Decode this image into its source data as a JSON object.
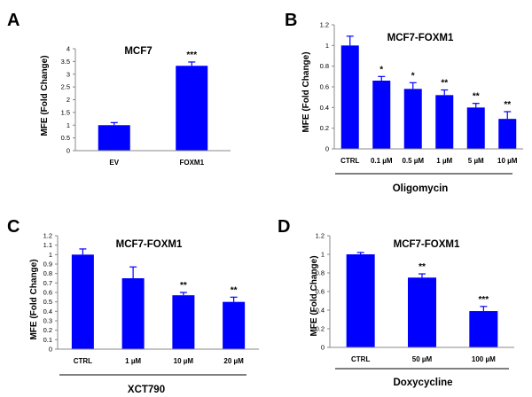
{
  "colors": {
    "bar": "#0000FF",
    "axis": "#888888",
    "text": "#000000"
  },
  "chart_data": [
    {
      "panel": "A",
      "type": "bar",
      "title": "MCF7",
      "ylabel": "MFE (Fold Change)",
      "xlabel": "",
      "categories": [
        "EV",
        "FOXM1"
      ],
      "values": [
        1.0,
        3.33
      ],
      "errors": [
        0.1,
        0.15
      ],
      "significance": [
        "",
        "***"
      ],
      "ylim": [
        0,
        4
      ],
      "yticks": [
        "0",
        "0.5",
        "1",
        "1.5",
        "2",
        "2.5",
        "3",
        "3.5",
        "4"
      ],
      "group_label": "",
      "grid": false,
      "legend": "none"
    },
    {
      "panel": "B",
      "type": "bar",
      "title": "MCF7-FOXM1",
      "ylabel": "MFE (Fold Change)",
      "xlabel": "",
      "categories": [
        "CTRL",
        "0.1 µM",
        "0.5 µM",
        "1 µM",
        "5 µM",
        "10 µM"
      ],
      "values": [
        1.0,
        0.66,
        0.58,
        0.52,
        0.4,
        0.29
      ],
      "errors": [
        0.09,
        0.04,
        0.06,
        0.05,
        0.04,
        0.07
      ],
      "significance": [
        "",
        "*",
        "*",
        "**",
        "**",
        "**"
      ],
      "ylim": [
        0,
        1.2
      ],
      "yticks": [
        "0",
        "0.2",
        "0.4",
        "0.6",
        "0.8",
        "1",
        "1.2"
      ],
      "group_label": "Oligomycin",
      "grid": false,
      "legend": "none"
    },
    {
      "panel": "C",
      "type": "bar",
      "title": "MCF7-FOXM1",
      "ylabel": "MFE (Fold Change)",
      "xlabel": "",
      "categories": [
        "CTRL",
        "1 µM",
        "10 µM",
        "20 µM"
      ],
      "values": [
        1.0,
        0.75,
        0.57,
        0.5
      ],
      "errors": [
        0.06,
        0.12,
        0.03,
        0.05
      ],
      "significance": [
        "",
        "",
        "**",
        "**"
      ],
      "ylim": [
        0,
        1.2
      ],
      "yticks": [
        "0",
        "0.1",
        "0.2",
        "0.3",
        "0.4",
        "0.5",
        "0.6",
        "0.7",
        "0.8",
        "0.9",
        "1",
        "1.1",
        "1.2"
      ],
      "group_label": "XCT790",
      "grid": false,
      "legend": "none"
    },
    {
      "panel": "D",
      "type": "bar",
      "title": "MCF7-FOXM1",
      "ylabel": "MFE (Fold Change)",
      "xlabel": "",
      "categories": [
        "CTRL",
        "50 µM",
        "100 µM"
      ],
      "values": [
        1.0,
        0.75,
        0.39
      ],
      "errors": [
        0.02,
        0.04,
        0.05
      ],
      "significance": [
        "",
        "**",
        "***"
      ],
      "ylim": [
        0,
        1.2
      ],
      "yticks": [
        "0",
        "0.2",
        "0.4",
        "0.6",
        "0.8",
        "1",
        "1.2"
      ],
      "group_label": "Doxycycline",
      "grid": false,
      "legend": "none"
    }
  ]
}
